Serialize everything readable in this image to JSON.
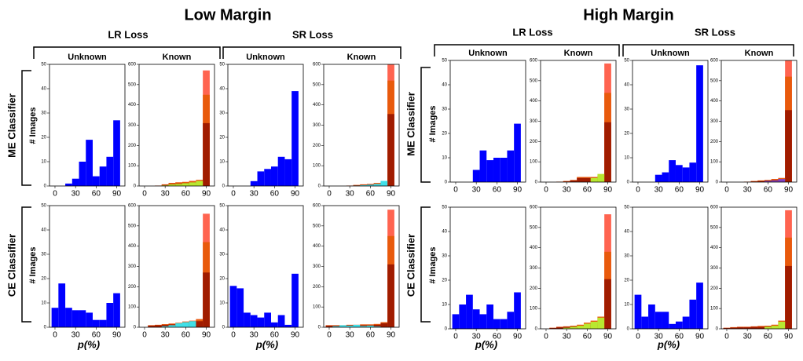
{
  "figure": {
    "low_margin": "Low Margin",
    "high_margin": "High Margin",
    "lr_loss": "LR Loss",
    "sr_loss": "SR Loss",
    "unknown": "Unknown",
    "known": "Known",
    "me": "ME Classifier",
    "ce": "CE Classifier",
    "ylabel": "# Images",
    "xlabel": "p(%)"
  },
  "chart_data": [
    {
      "type": "histogram",
      "bins": [
        -5,
        5,
        15,
        25,
        35,
        45,
        55,
        65,
        75,
        85,
        95
      ],
      "xlim": [
        -8,
        102
      ],
      "xticks": [
        0,
        30,
        60,
        90
      ],
      "ylim": [
        0,
        50
      ],
      "yticks": [
        0,
        10,
        20,
        30,
        40,
        50
      ],
      "series": [
        {
          "color": "#0000ff",
          "values": [
            0,
            0,
            1,
            3,
            10,
            19,
            4,
            8,
            12,
            27
          ]
        }
      ]
    },
    {
      "type": "histogram",
      "bins": [
        -5,
        5,
        15,
        25,
        35,
        45,
        55,
        65,
        75,
        85,
        95
      ],
      "xlim": [
        -8,
        102
      ],
      "xticks": [
        0,
        30,
        60,
        90
      ],
      "ylim": [
        0,
        600
      ],
      "yticks": [
        0,
        100,
        200,
        300,
        400,
        500,
        600
      ],
      "series": [
        {
          "color": "#ff6450",
          "values": [
            0,
            0,
            2,
            8,
            15,
            18,
            20,
            25,
            30,
            570
          ]
        },
        {
          "color": "#e85a0c",
          "values": [
            0,
            0,
            2,
            8,
            15,
            18,
            20,
            25,
            30,
            450
          ]
        },
        {
          "color": "#a01c00",
          "values": [
            0,
            0,
            1,
            5,
            10,
            12,
            15,
            18,
            22,
            310
          ]
        },
        {
          "color": "#b8e830",
          "values": [
            0,
            0,
            0,
            3,
            8,
            10,
            14,
            18,
            25,
            0
          ]
        }
      ]
    },
    {
      "type": "histogram",
      "bins": [
        -5,
        5,
        15,
        25,
        35,
        45,
        55,
        65,
        75,
        85,
        95
      ],
      "xlim": [
        -8,
        102
      ],
      "xticks": [
        0,
        30,
        60,
        90
      ],
      "ylim": [
        0,
        50
      ],
      "yticks": [
        0,
        10,
        20,
        30,
        40,
        50
      ],
      "series": [
        {
          "color": "#0000ff",
          "values": [
            0,
            0,
            0,
            2,
            6,
            7,
            8,
            12,
            11,
            39
          ]
        }
      ]
    },
    {
      "type": "histogram",
      "bins": [
        -5,
        5,
        15,
        25,
        35,
        45,
        55,
        65,
        75,
        85,
        95
      ],
      "xlim": [
        -8,
        102
      ],
      "xticks": [
        0,
        30,
        60,
        90
      ],
      "ylim": [
        0,
        600
      ],
      "yticks": [
        0,
        100,
        200,
        300,
        400,
        500,
        600
      ],
      "series": [
        {
          "color": "#ff6450",
          "values": [
            0,
            0,
            0,
            2,
            5,
            8,
            10,
            15,
            20,
            600
          ]
        },
        {
          "color": "#e85a0c",
          "values": [
            0,
            0,
            0,
            2,
            5,
            8,
            10,
            15,
            20,
            520
          ]
        },
        {
          "color": "#a01c00",
          "values": [
            0,
            0,
            0,
            1,
            3,
            5,
            8,
            10,
            12,
            355
          ]
        },
        {
          "color": "#40e0e8",
          "values": [
            0,
            0,
            0,
            0,
            2,
            4,
            6,
            10,
            25,
            0
          ]
        }
      ]
    },
    {
      "type": "histogram",
      "bins": [
        -5,
        5,
        15,
        25,
        35,
        45,
        55,
        65,
        75,
        85,
        95
      ],
      "xlim": [
        -8,
        102
      ],
      "xticks": [
        0,
        30,
        60,
        90
      ],
      "ylim": [
        0,
        50
      ],
      "yticks": [
        0,
        10,
        20,
        30,
        40,
        50
      ],
      "series": [
        {
          "color": "#0000ff",
          "values": [
            8,
            18,
            8,
            7,
            7,
            6,
            3,
            3,
            10,
            14
          ]
        }
      ]
    },
    {
      "type": "histogram",
      "bins": [
        -5,
        5,
        15,
        25,
        35,
        45,
        55,
        65,
        75,
        85,
        95
      ],
      "xlim": [
        -8,
        102
      ],
      "xticks": [
        0,
        30,
        60,
        90
      ],
      "ylim": [
        0,
        600
      ],
      "yticks": [
        0,
        100,
        200,
        300,
        400,
        500,
        600
      ],
      "series": [
        {
          "color": "#ff6450",
          "values": [
            0,
            10,
            12,
            15,
            18,
            22,
            28,
            32,
            40,
            560
          ]
        },
        {
          "color": "#e85a0c",
          "values": [
            0,
            10,
            12,
            15,
            18,
            22,
            28,
            32,
            40,
            420
          ]
        },
        {
          "color": "#a01c00",
          "values": [
            0,
            8,
            10,
            12,
            14,
            16,
            20,
            24,
            30,
            270
          ]
        },
        {
          "color": "#40e0e8",
          "values": [
            0,
            0,
            0,
            5,
            10,
            20,
            25,
            30,
            0,
            0
          ]
        }
      ]
    },
    {
      "type": "histogram",
      "bins": [
        -5,
        5,
        15,
        25,
        35,
        45,
        55,
        65,
        75,
        85,
        95
      ],
      "xlim": [
        -8,
        102
      ],
      "xticks": [
        0,
        30,
        60,
        90
      ],
      "ylim": [
        0,
        50
      ],
      "yticks": [
        0,
        10,
        20,
        30,
        40,
        50
      ],
      "series": [
        {
          "color": "#0000ff",
          "values": [
            17,
            16,
            6,
            5,
            4,
            6,
            2,
            5,
            1,
            22
          ]
        }
      ]
    },
    {
      "type": "histogram",
      "bins": [
        -5,
        5,
        15,
        25,
        35,
        45,
        55,
        65,
        75,
        85,
        95
      ],
      "xlim": [
        -8,
        102
      ],
      "xticks": [
        0,
        30,
        60,
        90
      ],
      "ylim": [
        0,
        600
      ],
      "yticks": [
        0,
        100,
        200,
        300,
        400,
        500,
        600
      ],
      "series": [
        {
          "color": "#ff6450",
          "values": [
            10,
            10,
            10,
            12,
            12,
            14,
            14,
            16,
            25,
            580
          ]
        },
        {
          "color": "#e85a0c",
          "values": [
            10,
            10,
            10,
            12,
            12,
            14,
            14,
            16,
            25,
            450
          ]
        },
        {
          "color": "#a01c00",
          "values": [
            8,
            8,
            8,
            10,
            10,
            10,
            10,
            12,
            20,
            310
          ]
        },
        {
          "color": "#40e0e8",
          "values": [
            0,
            5,
            10,
            8,
            12,
            6,
            8,
            4,
            0,
            0
          ]
        }
      ]
    },
    {
      "type": "histogram",
      "bins": [
        -5,
        5,
        15,
        25,
        35,
        45,
        55,
        65,
        75,
        85,
        95
      ],
      "xlim": [
        -8,
        102
      ],
      "xticks": [
        0,
        30,
        60,
        90
      ],
      "ylim": [
        0,
        50
      ],
      "yticks": [
        0,
        10,
        20,
        30,
        40,
        50
      ],
      "series": [
        {
          "color": "#0000ff",
          "values": [
            0,
            0,
            0,
            5,
            13,
            9,
            10,
            10,
            13,
            24
          ]
        }
      ]
    },
    {
      "type": "histogram",
      "bins": [
        -5,
        5,
        15,
        25,
        35,
        45,
        55,
        65,
        75,
        85,
        95
      ],
      "xlim": [
        -8,
        102
      ],
      "xticks": [
        0,
        30,
        60,
        90
      ],
      "ylim": [
        0,
        600
      ],
      "yticks": [
        0,
        100,
        200,
        300,
        400,
        500,
        600
      ],
      "series": [
        {
          "color": "#ff6450",
          "values": [
            0,
            0,
            2,
            5,
            10,
            25,
            25,
            25,
            30,
            585
          ]
        },
        {
          "color": "#e85a0c",
          "values": [
            0,
            0,
            2,
            5,
            10,
            25,
            25,
            25,
            30,
            440
          ]
        },
        {
          "color": "#a01c00",
          "values": [
            0,
            0,
            1,
            3,
            8,
            20,
            20,
            20,
            22,
            295
          ]
        },
        {
          "color": "#b8e830",
          "values": [
            0,
            0,
            0,
            0,
            0,
            0,
            0,
            20,
            40,
            0
          ]
        }
      ]
    },
    {
      "type": "histogram",
      "bins": [
        -5,
        5,
        15,
        25,
        35,
        45,
        55,
        65,
        75,
        85,
        95
      ],
      "xlim": [
        -8,
        102
      ],
      "xticks": [
        0,
        30,
        60,
        90
      ],
      "ylim": [
        0,
        50
      ],
      "yticks": [
        0,
        10,
        20,
        30,
        40,
        50
      ],
      "series": [
        {
          "color": "#0000ff",
          "values": [
            0,
            0,
            0,
            3,
            4,
            9,
            7,
            6,
            8,
            48
          ]
        }
      ]
    },
    {
      "type": "histogram",
      "bins": [
        -5,
        5,
        15,
        25,
        35,
        45,
        55,
        65,
        75,
        85,
        95
      ],
      "xlim": [
        -8,
        102
      ],
      "xticks": [
        0,
        30,
        60,
        90
      ],
      "ylim": [
        0,
        600
      ],
      "yticks": [
        0,
        100,
        200,
        300,
        400,
        500,
        600
      ],
      "series": [
        {
          "color": "#ff6450",
          "values": [
            0,
            0,
            0,
            2,
            5,
            8,
            10,
            15,
            20,
            600
          ]
        },
        {
          "color": "#e85a0c",
          "values": [
            0,
            0,
            0,
            2,
            5,
            8,
            10,
            15,
            20,
            520
          ]
        },
        {
          "color": "#a01c00",
          "values": [
            0,
            0,
            0,
            1,
            3,
            5,
            8,
            10,
            12,
            355
          ]
        },
        {
          "color": "#8040c0",
          "values": [
            0,
            0,
            0,
            0,
            0,
            0,
            5,
            8,
            15,
            0
          ]
        }
      ]
    },
    {
      "type": "histogram",
      "bins": [
        -5,
        5,
        15,
        25,
        35,
        45,
        55,
        65,
        75,
        85,
        95
      ],
      "xlim": [
        -8,
        102
      ],
      "xticks": [
        0,
        30,
        60,
        90
      ],
      "ylim": [
        0,
        50
      ],
      "yticks": [
        0,
        10,
        20,
        30,
        40,
        50
      ],
      "series": [
        {
          "color": "#0000ff",
          "values": [
            6,
            10,
            14,
            8,
            6,
            10,
            4,
            4,
            7,
            15
          ]
        }
      ]
    },
    {
      "type": "histogram",
      "bins": [
        -5,
        5,
        15,
        25,
        35,
        45,
        55,
        65,
        75,
        85,
        95
      ],
      "xlim": [
        -8,
        102
      ],
      "xticks": [
        0,
        30,
        60,
        90
      ],
      "ylim": [
        0,
        600
      ],
      "yticks": [
        0,
        100,
        200,
        300,
        400,
        500,
        600
      ],
      "series": [
        {
          "color": "#ff6450",
          "values": [
            0,
            5,
            10,
            12,
            15,
            20,
            30,
            40,
            60,
            565
          ]
        },
        {
          "color": "#e85a0c",
          "values": [
            0,
            5,
            10,
            12,
            15,
            20,
            30,
            40,
            60,
            380
          ]
        },
        {
          "color": "#a01c00",
          "values": [
            0,
            4,
            8,
            10,
            12,
            14,
            18,
            22,
            30,
            245
          ]
        },
        {
          "color": "#b8e830",
          "values": [
            0,
            0,
            0,
            5,
            10,
            15,
            25,
            35,
            55,
            0
          ]
        }
      ]
    },
    {
      "type": "histogram",
      "bins": [
        -5,
        5,
        15,
        25,
        35,
        45,
        55,
        65,
        75,
        85,
        95
      ],
      "xlim": [
        -8,
        102
      ],
      "xticks": [
        0,
        30,
        60,
        90
      ],
      "ylim": [
        0,
        50
      ],
      "yticks": [
        0,
        10,
        20,
        30,
        40,
        50
      ],
      "series": [
        {
          "color": "#0000ff",
          "values": [
            14,
            5,
            10,
            7,
            7,
            2,
            3,
            5,
            12,
            19
          ]
        }
      ]
    },
    {
      "type": "histogram",
      "bins": [
        -5,
        5,
        15,
        25,
        35,
        45,
        55,
        65,
        75,
        85,
        95
      ],
      "xlim": [
        -8,
        102
      ],
      "xticks": [
        0,
        30,
        60,
        90
      ],
      "ylim": [
        0,
        600
      ],
      "yticks": [
        0,
        100,
        200,
        300,
        400,
        500,
        600
      ],
      "series": [
        {
          "color": "#ff6450",
          "values": [
            5,
            8,
            10,
            10,
            12,
            14,
            15,
            20,
            40,
            585
          ]
        },
        {
          "color": "#e85a0c",
          "values": [
            5,
            8,
            10,
            10,
            12,
            14,
            15,
            20,
            40,
            450
          ]
        },
        {
          "color": "#a01c00",
          "values": [
            4,
            6,
            8,
            8,
            10,
            10,
            12,
            15,
            20,
            310
          ]
        },
        {
          "color": "#b8e830",
          "values": [
            0,
            0,
            0,
            0,
            0,
            0,
            10,
            15,
            35,
            0
          ]
        }
      ]
    }
  ]
}
